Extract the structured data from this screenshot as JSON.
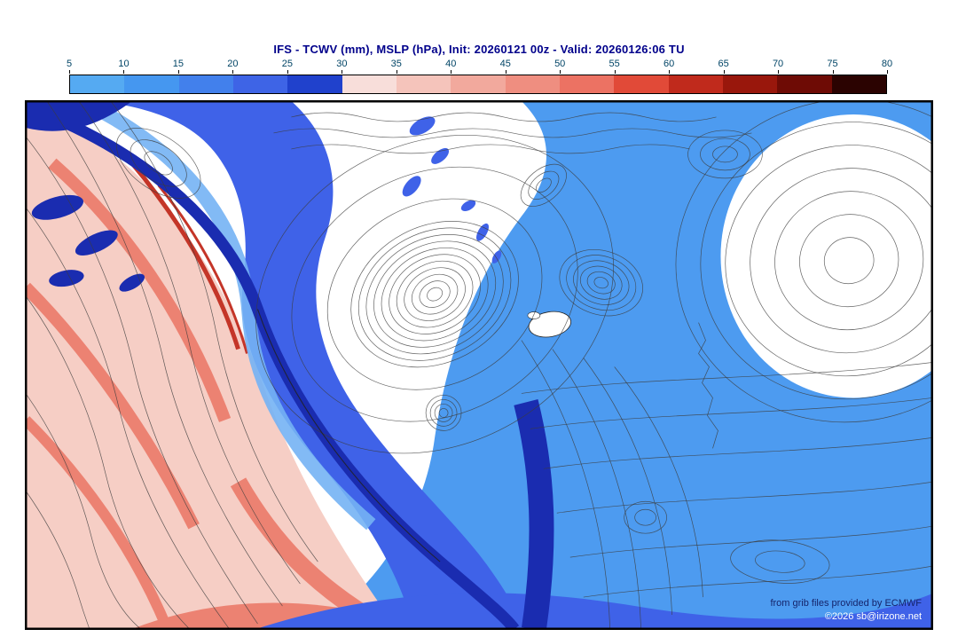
{
  "header": {
    "title": "IFS - TCWV (mm), MSLP (hPa), Init: 20260121 00z - Valid: 20260126:06 TU"
  },
  "colorbar": {
    "ticks": [
      "5",
      "10",
      "15",
      "20",
      "25",
      "30",
      "35",
      "40",
      "45",
      "50",
      "55",
      "60",
      "65",
      "70",
      "75",
      "80"
    ],
    "colors": [
      "#55aaf2",
      "#4597f0",
      "#4280ec",
      "#3e64e6",
      "#2041cc",
      "#f8deda",
      "#f5c4bb",
      "#f2a99d",
      "#ef8e80",
      "#ec7263",
      "#e14a38",
      "#c02a1c",
      "#99170c",
      "#6e0b05",
      "#2b0301"
    ]
  },
  "footer": {
    "source": "from grib files provided by ECMWF",
    "copyright": "©2026 sb@irizone.net"
  },
  "colors": {
    "light_blue": "#4d9bf0",
    "medium_blue": "#3f62e8",
    "dark_blue": "#1a2cb0",
    "inner_blue": "#74b2f4",
    "pink": "#f6cec5",
    "salmon": "#ec8272",
    "red": "#c43528",
    "contour": "#3c3c3c"
  },
  "chart_data": {
    "type": "heatmap",
    "title": "IFS - TCWV (mm), MSLP (hPa), Init: 20260121 00z - Valid: 20260126:06 TU",
    "shaded_field": {
      "name": "TCWV",
      "units": "mm",
      "levels": [
        5,
        10,
        15,
        20,
        25,
        30,
        35,
        40,
        45,
        50,
        55,
        60,
        65,
        70,
        75,
        80
      ],
      "palette": [
        "#55aaf2",
        "#4597f0",
        "#4280ec",
        "#3e64e6",
        "#2041cc",
        "#f8deda",
        "#f5c4bb",
        "#f2a99d",
        "#ef8e80",
        "#ec7263",
        "#e14a38",
        "#c02a1c",
        "#99170c",
        "#6e0b05",
        "#2b0301"
      ]
    },
    "contour_field": {
      "name": "MSLP",
      "units": "hPa"
    },
    "init": "20260121 00z",
    "valid": "20260126:06 TU",
    "legend_position": "top",
    "attribution": [
      "from grib files provided by ECMWF",
      "©2026 sb@irizone.net"
    ]
  }
}
